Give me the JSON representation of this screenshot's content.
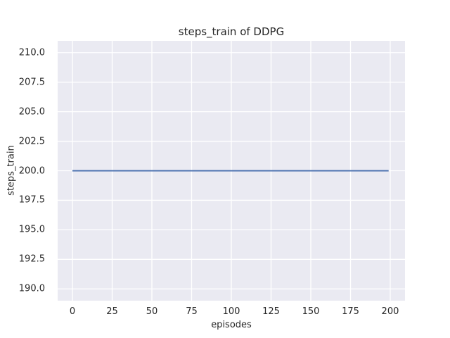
{
  "chart_data": {
    "type": "line",
    "title": "steps_train of DDPG",
    "xlabel": "episodes",
    "ylabel": "steps_train",
    "xlim": [
      -9.3,
      209.3
    ],
    "ylim": [
      189,
      211
    ],
    "xticks": [
      0,
      25,
      50,
      75,
      100,
      125,
      150,
      175,
      200
    ],
    "xticklabels": [
      "0",
      "25",
      "50",
      "75",
      "100",
      "125",
      "150",
      "175",
      "200"
    ],
    "yticks": [
      190.0,
      192.5,
      195.0,
      197.5,
      200.0,
      202.5,
      205.0,
      207.5,
      210.0
    ],
    "yticklabels": [
      "190.0",
      "192.5",
      "195.0",
      "197.5",
      "200.0",
      "202.5",
      "205.0",
      "207.5",
      "210.0"
    ],
    "grid": true,
    "legend": false,
    "series": [
      {
        "name": "steps_train",
        "x": [
          0,
          199
        ],
        "y": [
          200,
          200
        ],
        "constant_value": 200,
        "note": "flat line at 200 steps for every episode from 0 to 199"
      }
    ],
    "colors": {
      "figure_bg": "#ffffff",
      "plot_bg": "#EAEAF2",
      "grid": "#ffffff",
      "line": "#4C72B0",
      "text": "#262626"
    }
  }
}
